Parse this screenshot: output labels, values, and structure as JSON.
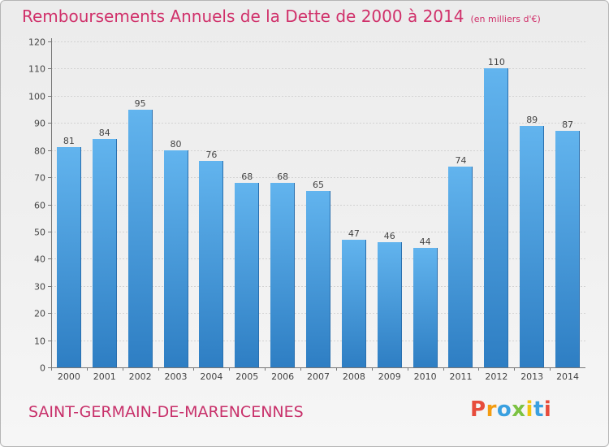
{
  "header": {
    "title": "Remboursements Annuels de la Dette de 2000 à 2014",
    "unit_note": "(en milliers d'€)"
  },
  "footer": {
    "commune_name": "SAINT-GERMAIN-DE-MARENCENNES",
    "logo_text": "Proxiti"
  },
  "colors": {
    "title": "#d0306a",
    "bar_light": "#5fb0ea",
    "bar_dark": "#2f7fc4",
    "logo_letters": [
      "#e74c3c",
      "#f39c12",
      "#3aa0e0",
      "#7cc242",
      "#f1c40f",
      "#3aa0e0",
      "#e74c3c"
    ]
  },
  "chart_data": {
    "type": "bar",
    "title": "Remboursements Annuels de la Dette de 2000 à 2014",
    "subtitle": "(en milliers d'€)",
    "categories": [
      "2000",
      "2001",
      "2002",
      "2003",
      "2004",
      "2005",
      "2006",
      "2007",
      "2008",
      "2009",
      "2010",
      "2011",
      "2012",
      "2013",
      "2014"
    ],
    "values": [
      81,
      84,
      95,
      80,
      76,
      68,
      68,
      65,
      47,
      46,
      44,
      74,
      110,
      89,
      87
    ],
    "ylim": [
      0,
      120
    ],
    "yticks": [
      0,
      10,
      20,
      30,
      40,
      50,
      60,
      70,
      80,
      90,
      100,
      110,
      120
    ],
    "grid": true,
    "legend": "none"
  }
}
